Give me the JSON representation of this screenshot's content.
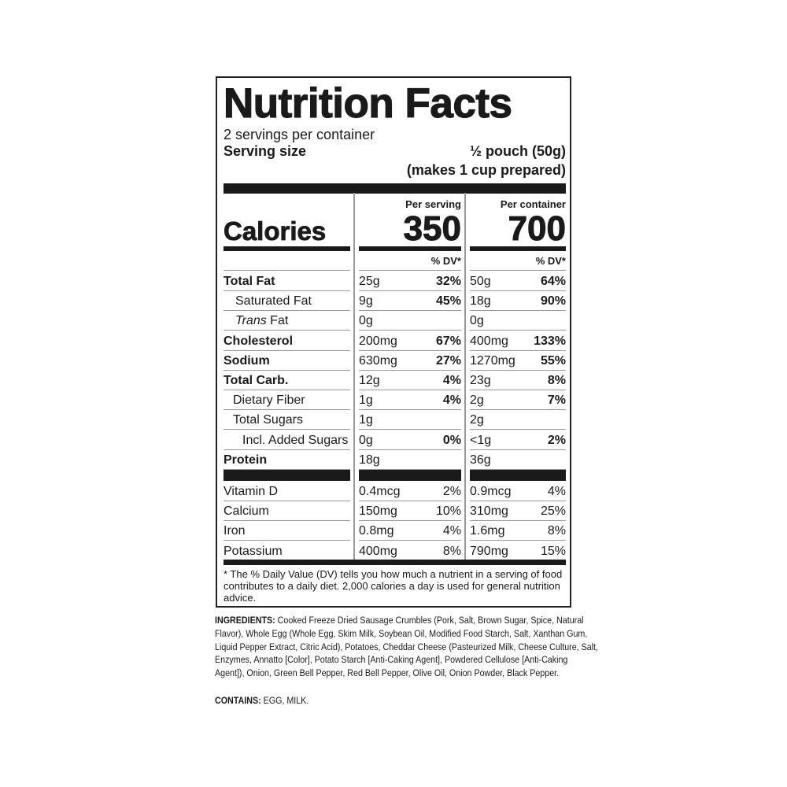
{
  "title": "Nutrition Facts",
  "servings_per_container": "2 servings per container",
  "serving_size_label": "Serving size",
  "serving_size_value": "½ pouch (50g)",
  "serving_size_note": "(makes 1 cup prepared)",
  "calories": {
    "label": "Calories",
    "per_serving_label": "Per serving",
    "per_serving": "350",
    "per_container_label": "Per container",
    "per_container": "700",
    "dv_label": "% DV*"
  },
  "nutrients": [
    {
      "name": "Total Fat",
      "bold": true,
      "indent": 0,
      "s_amt": "25g",
      "s_dv": "32%",
      "c_amt": "50g",
      "c_dv": "64%"
    },
    {
      "name": "Saturated Fat",
      "bold": false,
      "indent": 15,
      "s_amt": "9g",
      "s_dv": "45%",
      "c_amt": "18g",
      "c_dv": "90%"
    },
    {
      "name": "Trans Fat",
      "bold": false,
      "indent": 15,
      "s_amt": "0g",
      "s_dv": "",
      "c_amt": "0g",
      "c_dv": ""
    },
    {
      "name": "Cholesterol",
      "bold": true,
      "indent": 0,
      "s_amt": "200mg",
      "s_dv": "67%",
      "c_amt": "400mg",
      "c_dv": "133%"
    },
    {
      "name": "Sodium",
      "bold": true,
      "indent": 0,
      "s_amt": "630mg",
      "s_dv": "27%",
      "c_amt": "1270mg",
      "c_dv": "55%"
    },
    {
      "name": "Total Carb.",
      "bold": true,
      "indent": 0,
      "s_amt": "12g",
      "s_dv": "4%",
      "c_amt": "23g",
      "c_dv": "8%"
    },
    {
      "name": "Dietary Fiber",
      "bold": false,
      "indent": 12,
      "s_amt": "1g",
      "s_dv": "4%",
      "c_amt": "2g",
      "c_dv": "7%"
    },
    {
      "name": "Total Sugars",
      "bold": false,
      "indent": 12,
      "s_amt": "1g",
      "s_dv": "",
      "c_amt": "2g",
      "c_dv": ""
    },
    {
      "name": "Incl. Added Sugars",
      "bold": false,
      "indent": 24,
      "s_amt": "0g",
      "s_dv": "0%",
      "c_amt": "<1g",
      "c_dv": "2%"
    },
    {
      "name": "Protein",
      "bold": true,
      "indent": 0,
      "s_amt": "18g",
      "s_dv": "",
      "c_amt": "36g",
      "c_dv": ""
    }
  ],
  "vitamins": [
    {
      "name": "Vitamin D",
      "s_amt": "0.4mcg",
      "s_dv": "2%",
      "c_amt": "0.9mcg",
      "c_dv": "4%"
    },
    {
      "name": "Calcium",
      "s_amt": "150mg",
      "s_dv": "10%",
      "c_amt": "310mg",
      "c_dv": "25%"
    },
    {
      "name": "Iron",
      "s_amt": "0.8mg",
      "s_dv": "4%",
      "c_amt": "1.6mg",
      "c_dv": "8%"
    },
    {
      "name": "Potassium",
      "s_amt": "400mg",
      "s_dv": "8%",
      "c_amt": "790mg",
      "c_dv": "15%"
    }
  ],
  "footnote": "* The % Daily Value (DV) tells you how much a nutrient in a serving of food contributes to a daily diet. 2,000 calories a day is used for general nutrition advice.",
  "ingredients_label": "INGREDIENTS:",
  "ingredients": "Cooked Freeze Dried Sausage Crumbles (Pork, Salt, Brown Sugar, Spice, Natural Flavor), Whole Egg (Whole Egg, Skim Milk, Soybean Oil, Modified Food Starch, Salt, Xanthan Gum, Liquid Pepper Extract, Citric Acid), Potatoes, Cheddar Cheese (Pasteurized Milk, Cheese Culture, Salt, Enzymes, Annatto [Color], Potato Starch [Anti-Caking Agent], Powdered Cellulose [Anti-Caking Agent]), Onion, Green Bell Pepper, Red Bell Pepper, Olive Oil, Onion Powder, Black Pepper.",
  "contains_label": "CONTAINS:",
  "contains": "EGG, MILK."
}
